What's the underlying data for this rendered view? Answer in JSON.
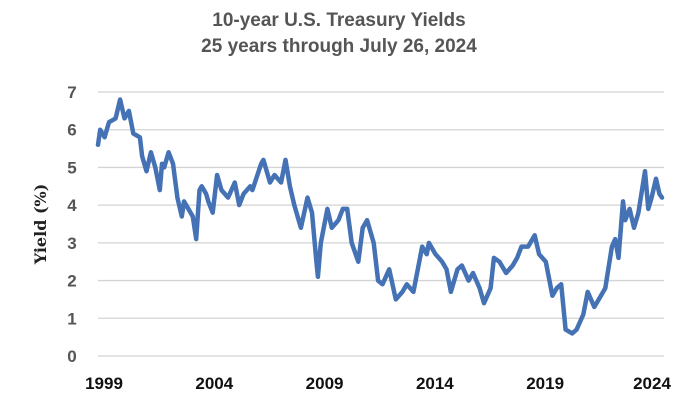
{
  "chart_data": {
    "type": "line",
    "title": "10-year U.S. Treasury Yields",
    "subtitle": "25 years through July 26, 2024",
    "xlabel": "",
    "ylabel": "Yield (%)",
    "xlim": [
      1999,
      2024.57
    ],
    "ylim": [
      0,
      7
    ],
    "yticks": [
      "0",
      "1",
      "2",
      "3",
      "4",
      "5",
      "6",
      "7"
    ],
    "xticks": [
      "1999",
      "2004",
      "2009",
      "2014",
      "2019",
      "2024"
    ],
    "grid": "horizontal",
    "line_color": "#4472b4",
    "x": [
      1999.0,
      1999.1,
      1999.3,
      1999.5,
      1999.8,
      2000.0,
      2000.2,
      2000.4,
      2000.6,
      2000.9,
      2001.0,
      2001.2,
      2001.4,
      2001.6,
      2001.8,
      2001.9,
      2002.0,
      2002.2,
      2002.4,
      2002.6,
      2002.8,
      2002.9,
      2003.1,
      2003.3,
      2003.45,
      2003.6,
      2003.7,
      2003.9,
      2004.0,
      2004.2,
      2004.4,
      2004.6,
      2004.9,
      2005.2,
      2005.4,
      2005.6,
      2005.9,
      2006.0,
      2006.4,
      2006.5,
      2006.8,
      2007.0,
      2007.3,
      2007.5,
      2007.7,
      2007.9,
      2008.2,
      2008.5,
      2008.7,
      2008.9,
      2008.97,
      2009.1,
      2009.4,
      2009.6,
      2009.9,
      2010.1,
      2010.3,
      2010.5,
      2010.8,
      2011.0,
      2011.2,
      2011.5,
      2011.7,
      2011.9,
      2012.2,
      2012.5,
      2012.8,
      2013.0,
      2013.3,
      2013.6,
      2013.7,
      2013.9,
      2014.0,
      2014.3,
      2014.6,
      2014.8,
      2015.0,
      2015.3,
      2015.5,
      2015.8,
      2016.0,
      2016.3,
      2016.5,
      2016.8,
      2016.95,
      2017.2,
      2017.5,
      2017.8,
      2018.0,
      2018.2,
      2018.5,
      2018.8,
      2019.0,
      2019.3,
      2019.6,
      2019.8,
      2020.0,
      2020.2,
      2020.5,
      2020.7,
      2021.0,
      2021.2,
      2021.5,
      2021.8,
      2022.0,
      2022.3,
      2022.45,
      2022.6,
      2022.8,
      2022.9,
      2023.1,
      2023.3,
      2023.5,
      2023.8,
      2023.95,
      2024.1,
      2024.3,
      2024.45,
      2024.57
    ],
    "y": [
      5.6,
      6.0,
      5.8,
      6.2,
      6.3,
      6.8,
      6.3,
      6.5,
      5.9,
      5.8,
      5.3,
      4.9,
      5.4,
      5.0,
      4.4,
      5.1,
      5.0,
      5.4,
      5.1,
      4.2,
      3.7,
      4.1,
      3.9,
      3.7,
      3.1,
      4.4,
      4.5,
      4.3,
      4.1,
      3.8,
      4.8,
      4.4,
      4.2,
      4.6,
      4.0,
      4.3,
      4.5,
      4.4,
      5.1,
      5.2,
      4.6,
      4.8,
      4.6,
      5.2,
      4.5,
      4.0,
      3.4,
      4.2,
      3.8,
      2.5,
      2.1,
      3.0,
      3.9,
      3.4,
      3.6,
      3.9,
      3.9,
      3.0,
      2.5,
      3.4,
      3.6,
      3.0,
      2.0,
      1.9,
      2.3,
      1.5,
      1.7,
      1.9,
      1.7,
      2.6,
      2.9,
      2.7,
      3.0,
      2.7,
      2.5,
      2.3,
      1.7,
      2.3,
      2.4,
      2.0,
      2.2,
      1.8,
      1.4,
      1.8,
      2.6,
      2.5,
      2.2,
      2.4,
      2.6,
      2.9,
      2.9,
      3.2,
      2.7,
      2.5,
      1.6,
      1.8,
      1.9,
      0.7,
      0.6,
      0.7,
      1.1,
      1.7,
      1.3,
      1.6,
      1.8,
      2.9,
      3.1,
      2.6,
      4.1,
      3.6,
      3.9,
      3.4,
      3.8,
      4.9,
      3.9,
      4.2,
      4.7,
      4.3,
      4.2
    ]
  }
}
